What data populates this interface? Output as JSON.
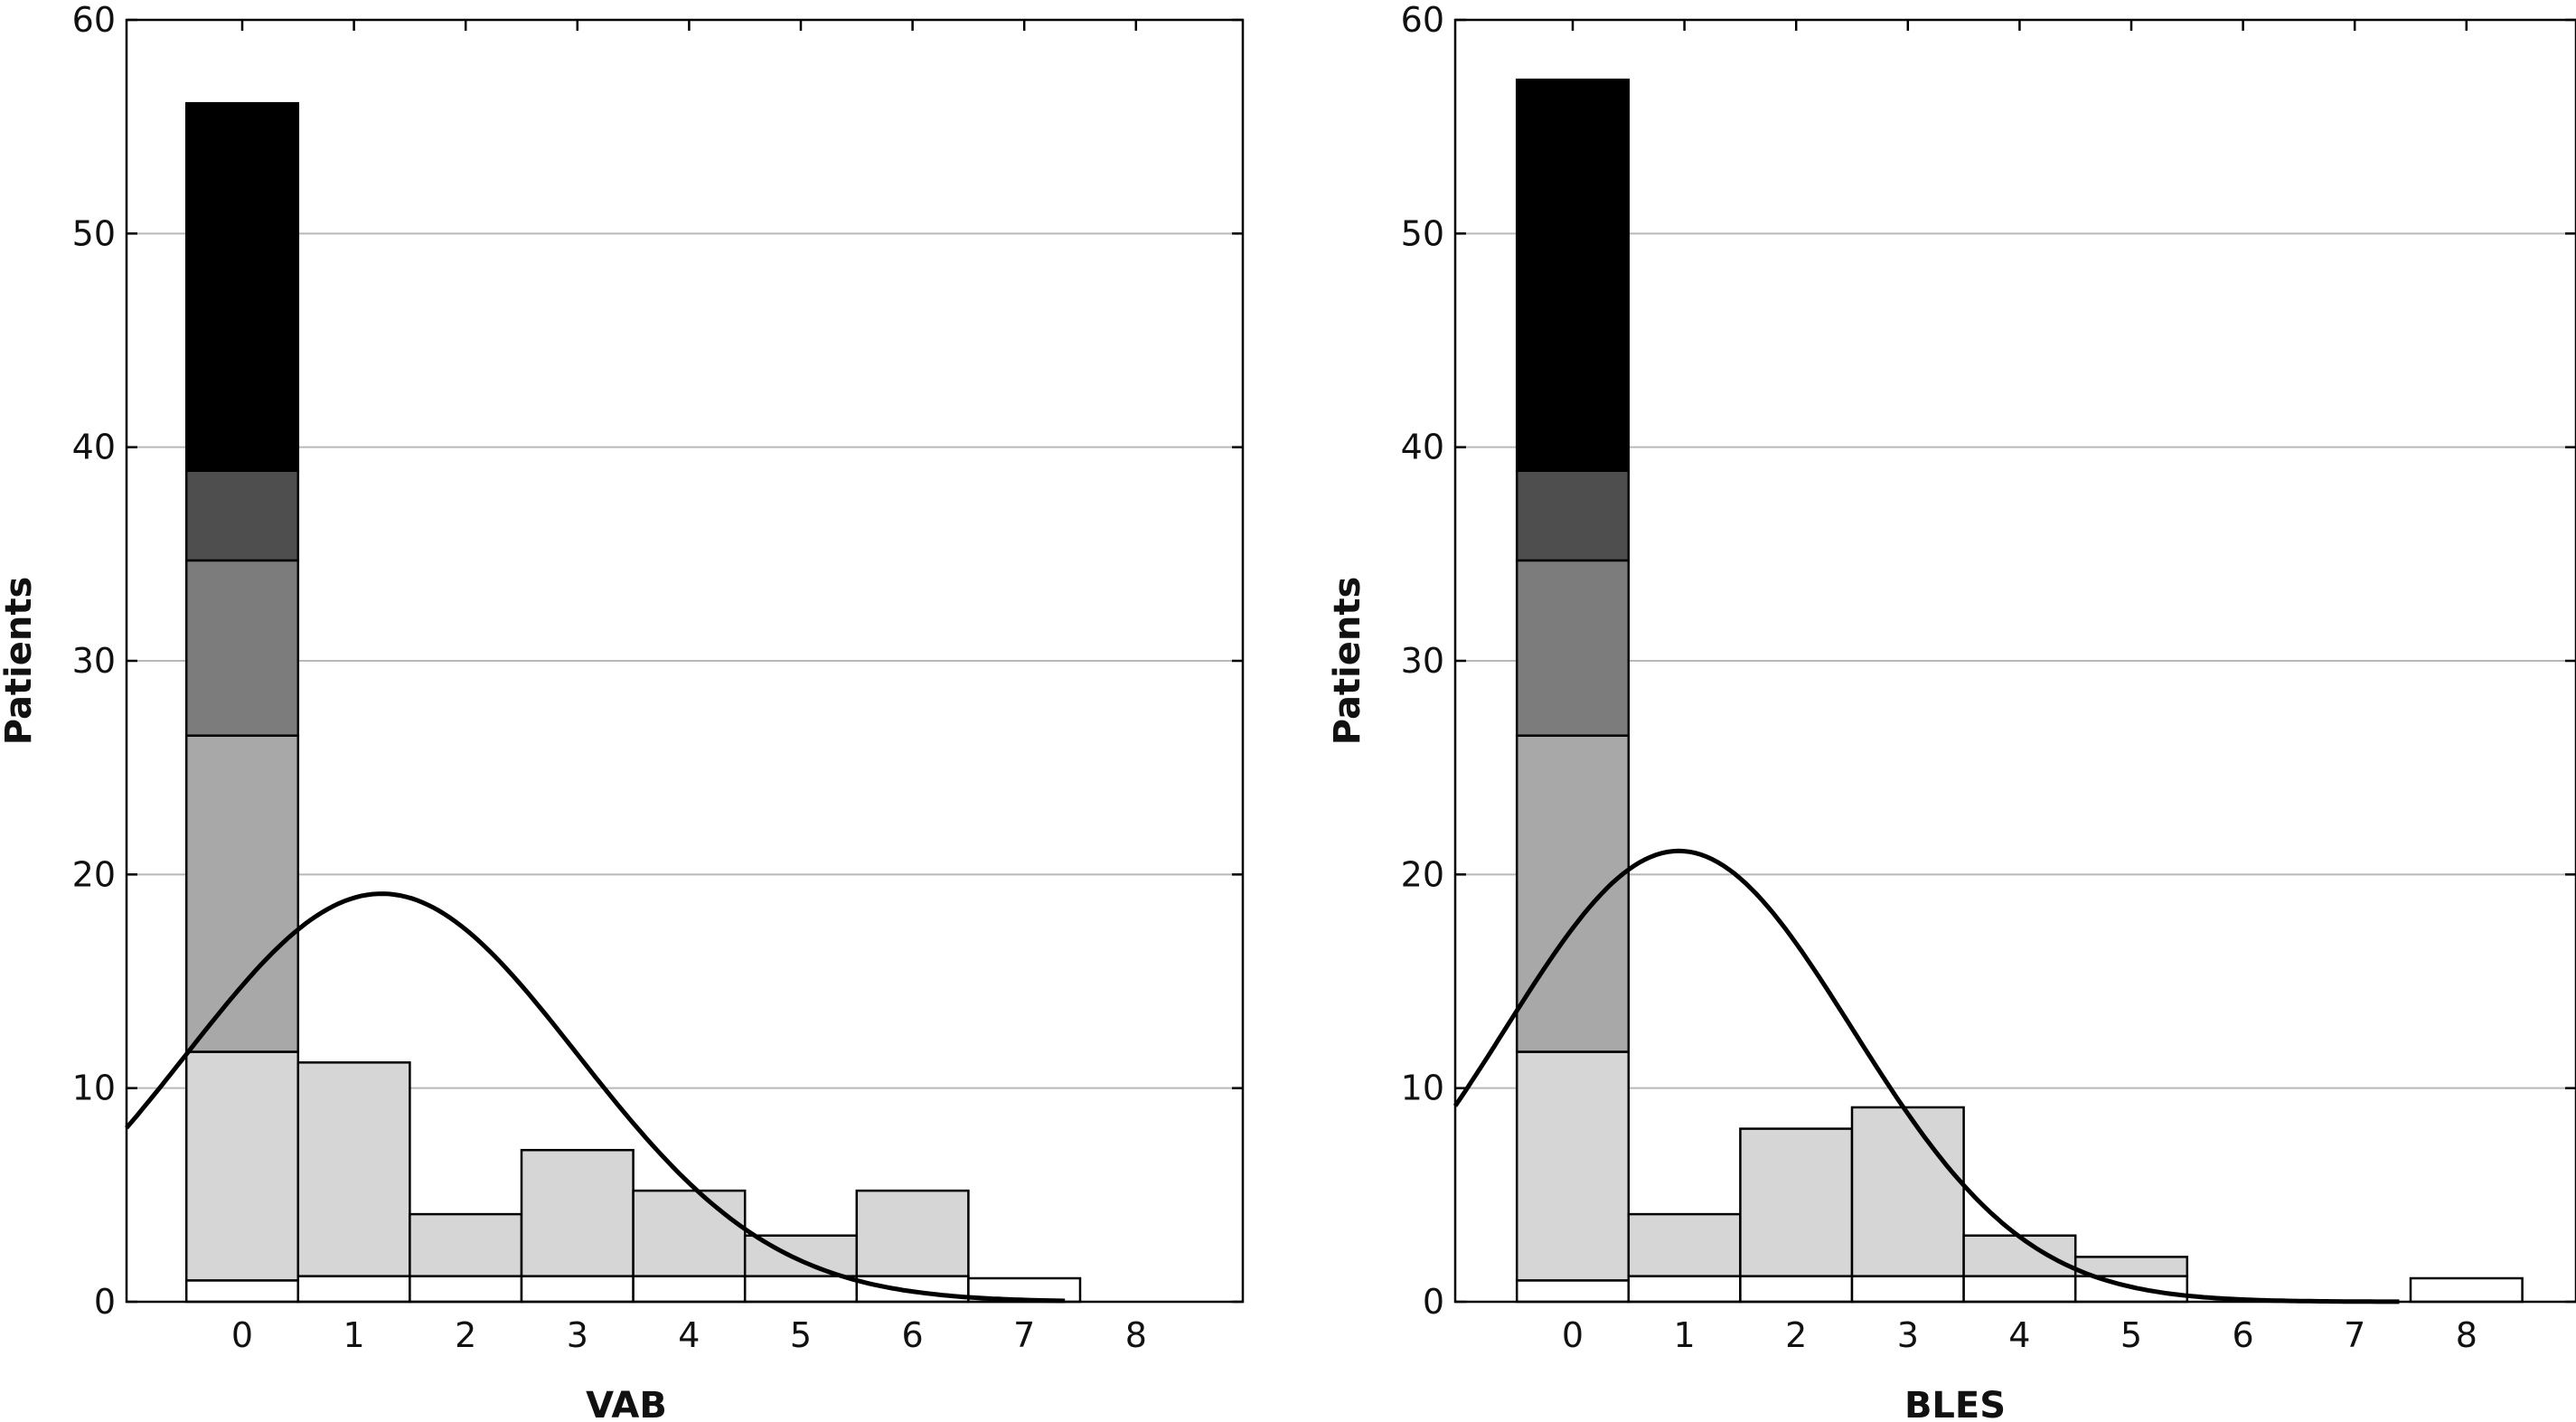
{
  "chart_data": [
    {
      "type": "bar",
      "stacked": true,
      "xlabel": "VAB",
      "ylabel": "Patients",
      "ylim": [
        0,
        60
      ],
      "yticks": [
        0,
        10,
        20,
        30,
        40,
        50,
        60
      ],
      "categories": [
        "0",
        "1",
        "2",
        "3",
        "4",
        "5",
        "6",
        "7",
        "8"
      ],
      "stacks": [
        [
          1,
          10.7,
          14.8,
          8.2,
          4.2,
          17.2
        ],
        [
          1.2,
          10
        ],
        [
          1.2,
          2.9
        ],
        [
          1.2,
          5.9
        ],
        [
          1.2,
          4
        ],
        [
          1.2,
          1.9
        ],
        [
          1.2,
          4
        ],
        [
          1.1
        ],
        []
      ],
      "segment_colors": [
        "#ffffff",
        "#d6d6d6",
        "#a8a8a8",
        "#7c7c7c",
        "#4e4e4e",
        "#000000"
      ],
      "curve": {
        "type": "normal",
        "peak_x": 1.25,
        "peak_y": 19.1,
        "sd": 1.75
      },
      "grid": "horizontal"
    },
    {
      "type": "bar",
      "stacked": true,
      "xlabel": "BLES",
      "ylabel": "Patients",
      "ylim": [
        0,
        60
      ],
      "yticks": [
        0,
        10,
        20,
        30,
        40,
        50,
        60
      ],
      "categories": [
        "0",
        "1",
        "2",
        "3",
        "4",
        "5",
        "6",
        "7",
        "8"
      ],
      "stacks": [
        [
          1,
          10.7,
          14.8,
          8.2,
          4.2,
          18.3
        ],
        [
          1.2,
          2.9
        ],
        [
          1.2,
          6.9
        ],
        [
          1.2,
          7.9
        ],
        [
          1.2,
          1.9
        ],
        [
          1.2,
          0.9
        ],
        [],
        [],
        [
          1.1
        ]
      ],
      "segment_colors": [
        "#ffffff",
        "#d6d6d6",
        "#a8a8a8",
        "#7c7c7c",
        "#4e4e4e",
        "#000000"
      ],
      "curve": {
        "type": "normal",
        "peak_x": 0.95,
        "peak_y": 21.1,
        "sd": 1.55
      },
      "grid": "horizontal"
    }
  ]
}
